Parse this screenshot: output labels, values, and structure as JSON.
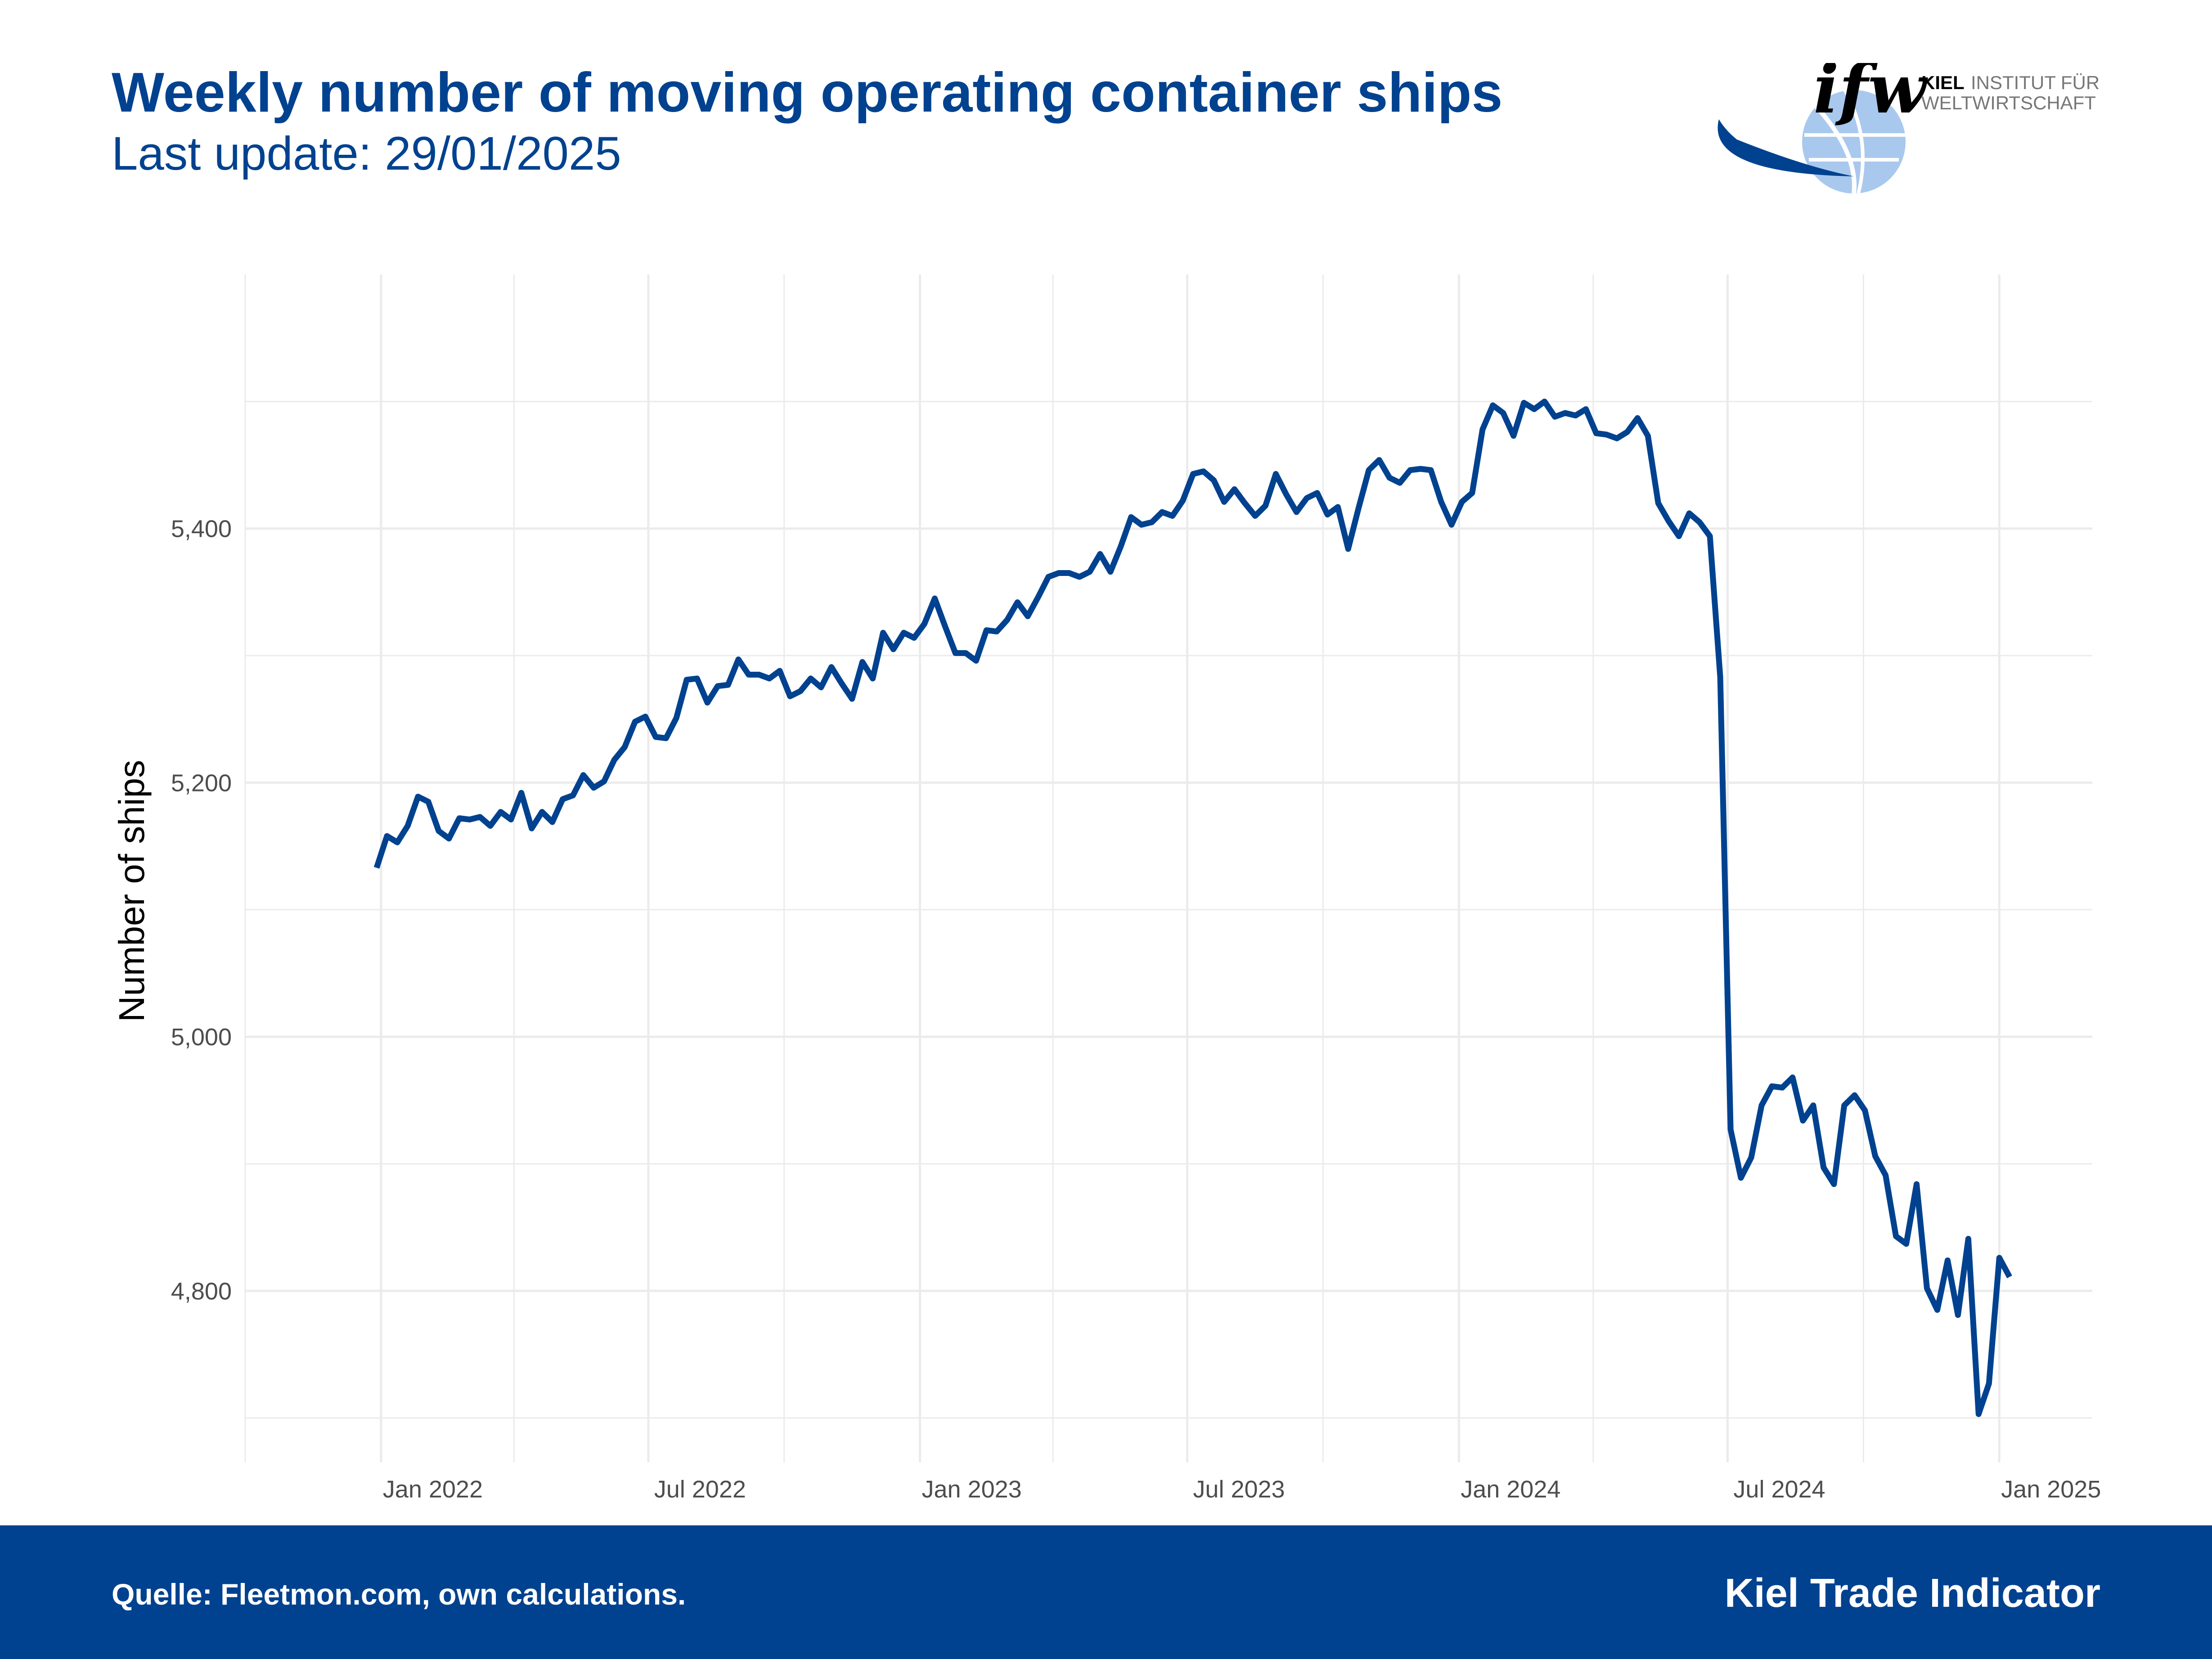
{
  "header": {
    "title": "Weekly number of moving operating container ships",
    "subtitle": "Last update: 29/01/2025"
  },
  "logo": {
    "wordmark": "ifw",
    "line1_bold": "KIEL",
    "line1_rest": "INSTITUT FÜR",
    "line2": "WELTWIRTSCHAFT"
  },
  "footer": {
    "source": "Quelle: Fleetmon.com, own calculations.",
    "brand": "Kiel Trade Indicator"
  },
  "colors": {
    "brand_blue": "#00428F",
    "globe_light": "#A9C8EE",
    "grid": "#EBEBEB"
  },
  "chart_data": {
    "type": "line",
    "title": "Weekly number of moving operating container ships",
    "subtitle": "Last update: 29/01/2025",
    "ylabel": "Number of ships",
    "xlabel": "",
    "x_start": "2021-12-29",
    "x_step_days": 7,
    "xlim": [
      "2021-10-01",
      "2025-03-05"
    ],
    "ylim": [
      4665,
      5600
    ],
    "x_ticks": [
      {
        "label": "Jan 2022",
        "date": "2022-01-01"
      },
      {
        "label": "Jul 2022",
        "date": "2022-07-01"
      },
      {
        "label": "Jan 2023",
        "date": "2023-01-01"
      },
      {
        "label": "Jul 2023",
        "date": "2023-07-01"
      },
      {
        "label": "Jan 2024",
        "date": "2024-01-01"
      },
      {
        "label": "Jul 2024",
        "date": "2024-07-01"
      },
      {
        "label": "Jan 2025",
        "date": "2025-01-01"
      }
    ],
    "x_minor_ticks": [
      "2021-10-01",
      "2022-04-01",
      "2022-10-01",
      "2023-04-01",
      "2023-10-01",
      "2024-04-01",
      "2024-10-01"
    ],
    "y_ticks": [
      {
        "label": "4,800",
        "value": 4800
      },
      {
        "label": "5,000",
        "value": 5000
      },
      {
        "label": "5,200",
        "value": 5200
      },
      {
        "label": "5,400",
        "value": 5400
      }
    ],
    "y_minor_ticks": [
      4700,
      4900,
      5100,
      5300,
      5500
    ],
    "grid": true,
    "series": [
      {
        "values": [
          5133,
          5158,
          5153,
          5166,
          5189,
          5185,
          5162,
          5156,
          5172,
          5171,
          5173,
          5166,
          5177,
          5171,
          5192,
          5164,
          5177,
          5169,
          5187,
          5190,
          5206,
          5196,
          5201,
          5218,
          5228,
          5248,
          5252,
          5236,
          5235,
          5251,
          5281,
          5282,
          5263,
          5276,
          5277,
          5297,
          5285,
          5285,
          5282,
          5288,
          5268,
          5272,
          5282,
          5275,
          5291,
          5278,
          5266,
          5295,
          5282,
          5318,
          5305,
          5318,
          5314,
          5325,
          5345,
          5323,
          5302,
          5302,
          5296,
          5320,
          5319,
          5328,
          5342,
          5331,
          5346,
          5362,
          5365,
          5365,
          5362,
          5366,
          5380,
          5366,
          5386,
          5409,
          5403,
          5405,
          5413,
          5410,
          5422,
          5443,
          5445,
          5438,
          5421,
          5431,
          5420,
          5410,
          5418,
          5443,
          5427,
          5413,
          5424,
          5428,
          5411,
          5417,
          5384,
          5416,
          5446,
          5454,
          5440,
          5436,
          5446,
          5447,
          5446,
          5421,
          5403,
          5421,
          5428,
          5478,
          5497,
          5491,
          5473,
          5499,
          5494,
          5500,
          5488,
          5491,
          5489,
          5494,
          5475,
          5474,
          5471,
          5476,
          5487,
          5473,
          5420,
          5406,
          5394,
          5412,
          5405,
          5394,
          5283,
          4927,
          4889,
          4905,
          4946,
          4961,
          4960,
          4968,
          4934,
          4946,
          4897,
          4884,
          4946,
          4954,
          4942,
          4906,
          4891,
          4843,
          4837,
          4884,
          4802,
          4785,
          4824,
          4781,
          4841,
          4703,
          4727,
          4826,
          4811
        ]
      }
    ]
  }
}
